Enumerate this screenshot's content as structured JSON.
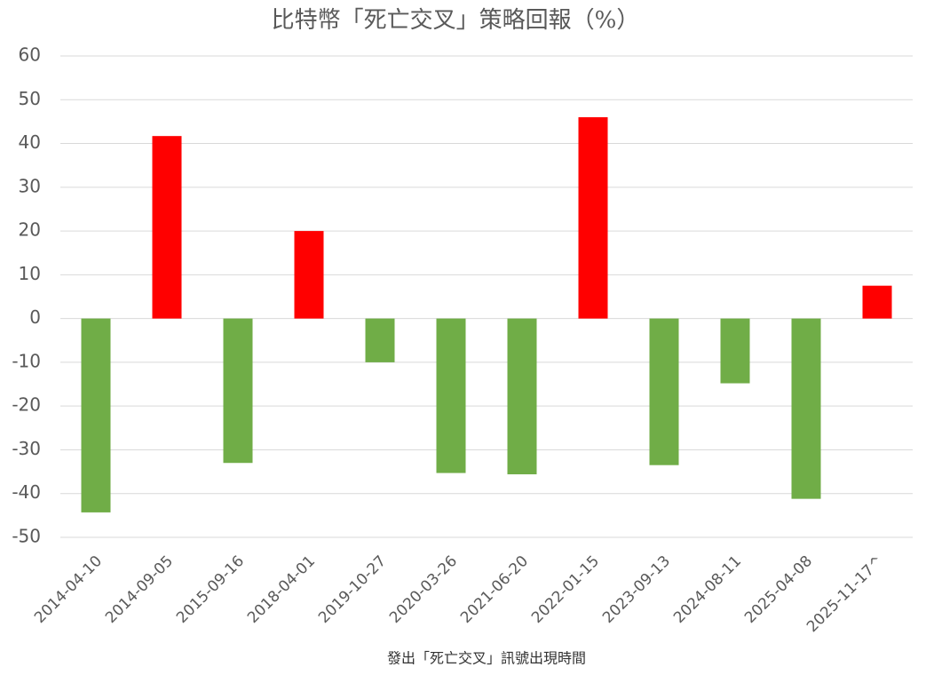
{
  "chart_data": {
    "type": "bar",
    "title": "比特幣「死亡交叉」策略回報（%）",
    "x_label": "發出「死亡交叉」訊號出現時間",
    "categories": [
      "2014-04-10",
      "2014-09-05",
      "2015-09-16",
      "2018-04-01",
      "2019-10-27",
      "2020-03-26",
      "2021-06-20",
      "2022-01-15",
      "2023-09-13",
      "2024-08-11",
      "2025-04-08",
      "2025-11-17^"
    ],
    "values": [
      -44.3,
      41.7,
      -33,
      20,
      -10,
      -35.3,
      -35.6,
      46,
      -33.5,
      -14.8,
      -41.2,
      7.5
    ],
    "colors": [
      "#70ad47",
      "#ff0000",
      "#70ad47",
      "#ff0000",
      "#70ad47",
      "#70ad47",
      "#70ad47",
      "#ff0000",
      "#70ad47",
      "#70ad47",
      "#70ad47",
      "#ff0000"
    ],
    "ylim": [
      -50,
      60
    ],
    "yticks": [
      -50,
      -40,
      -30,
      -20,
      -10,
      0,
      10,
      20,
      30,
      40,
      50,
      60
    ],
    "grid": true
  }
}
